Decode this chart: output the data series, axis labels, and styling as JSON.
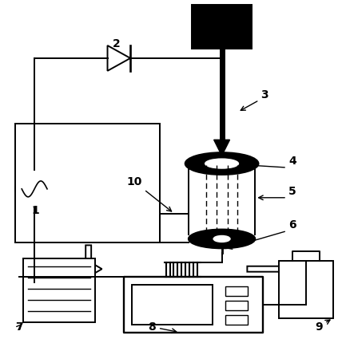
{
  "figsize": [
    4.28,
    4.3
  ],
  "dpi": 100,
  "bg_color": "white",
  "line_color": "black",
  "lw": 1.4
}
